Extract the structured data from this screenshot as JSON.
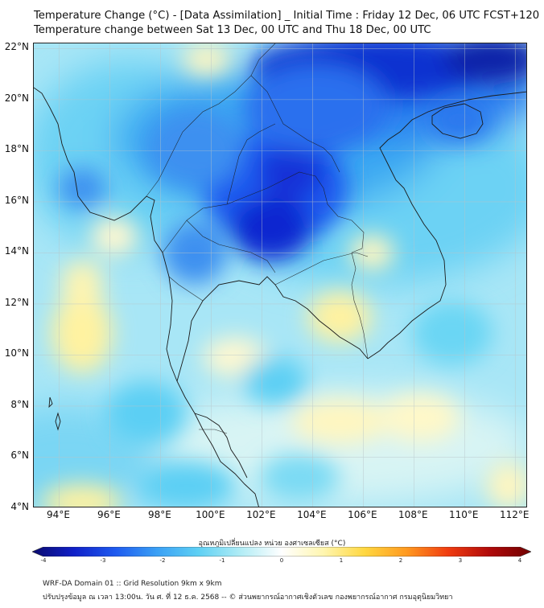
{
  "header": {
    "title_line1": "Temperature Change (°C) - [Data Assimilation] _ Initial Time : Friday 12 Dec, 06 UTC FCST+120",
    "title_line2": "Temperature change between Sat 13 Dec, 00 UTC and Thu 18 Dec, 00 UTC"
  },
  "map": {
    "lat_labels": [
      "22°N",
      "20°N",
      "18°N",
      "16°N",
      "14°N",
      "12°N",
      "10°N",
      "8°N",
      "6°N",
      "4°N"
    ],
    "lon_labels": [
      "94°E",
      "96°E",
      "98°E",
      "100°E",
      "102°E",
      "104°E",
      "106°E",
      "108°E",
      "110°E",
      "112°E"
    ],
    "lat_range": [
      4,
      22.2
    ],
    "lon_range": [
      93,
      112.5
    ]
  },
  "colorbar": {
    "title": "อุณหภูมิเปลี่ยนแปลง หน่วย องศาเซลเซียส (°C)",
    "ticks": [
      "-4",
      "-3",
      "-2",
      "-1",
      "0",
      "1",
      "2",
      "3",
      "4"
    ],
    "colors": [
      "#0a0a6e",
      "#1020c8",
      "#1e5aef",
      "#3aa0f5",
      "#5ed0f4",
      "#b0ecf5",
      "#ffffff",
      "#fff6b0",
      "#ffd740",
      "#ff9a20",
      "#f03c10",
      "#b00a0a",
      "#700000"
    ]
  },
  "footer": {
    "line1": "WRF-DA Domain 01 :: Grid Resolution 9km x 9km",
    "line2": "ปรับปรุงข้อมูล ณ เวลา 13:00น. วัน ศ. ที่ 12 ธ.ค. 2568 -- © ส่วนพยากรณ์อากาศเชิงตัวเลข กองพยากรณ์อากาศ กรมอุตุนิยมวิทยา"
  }
}
